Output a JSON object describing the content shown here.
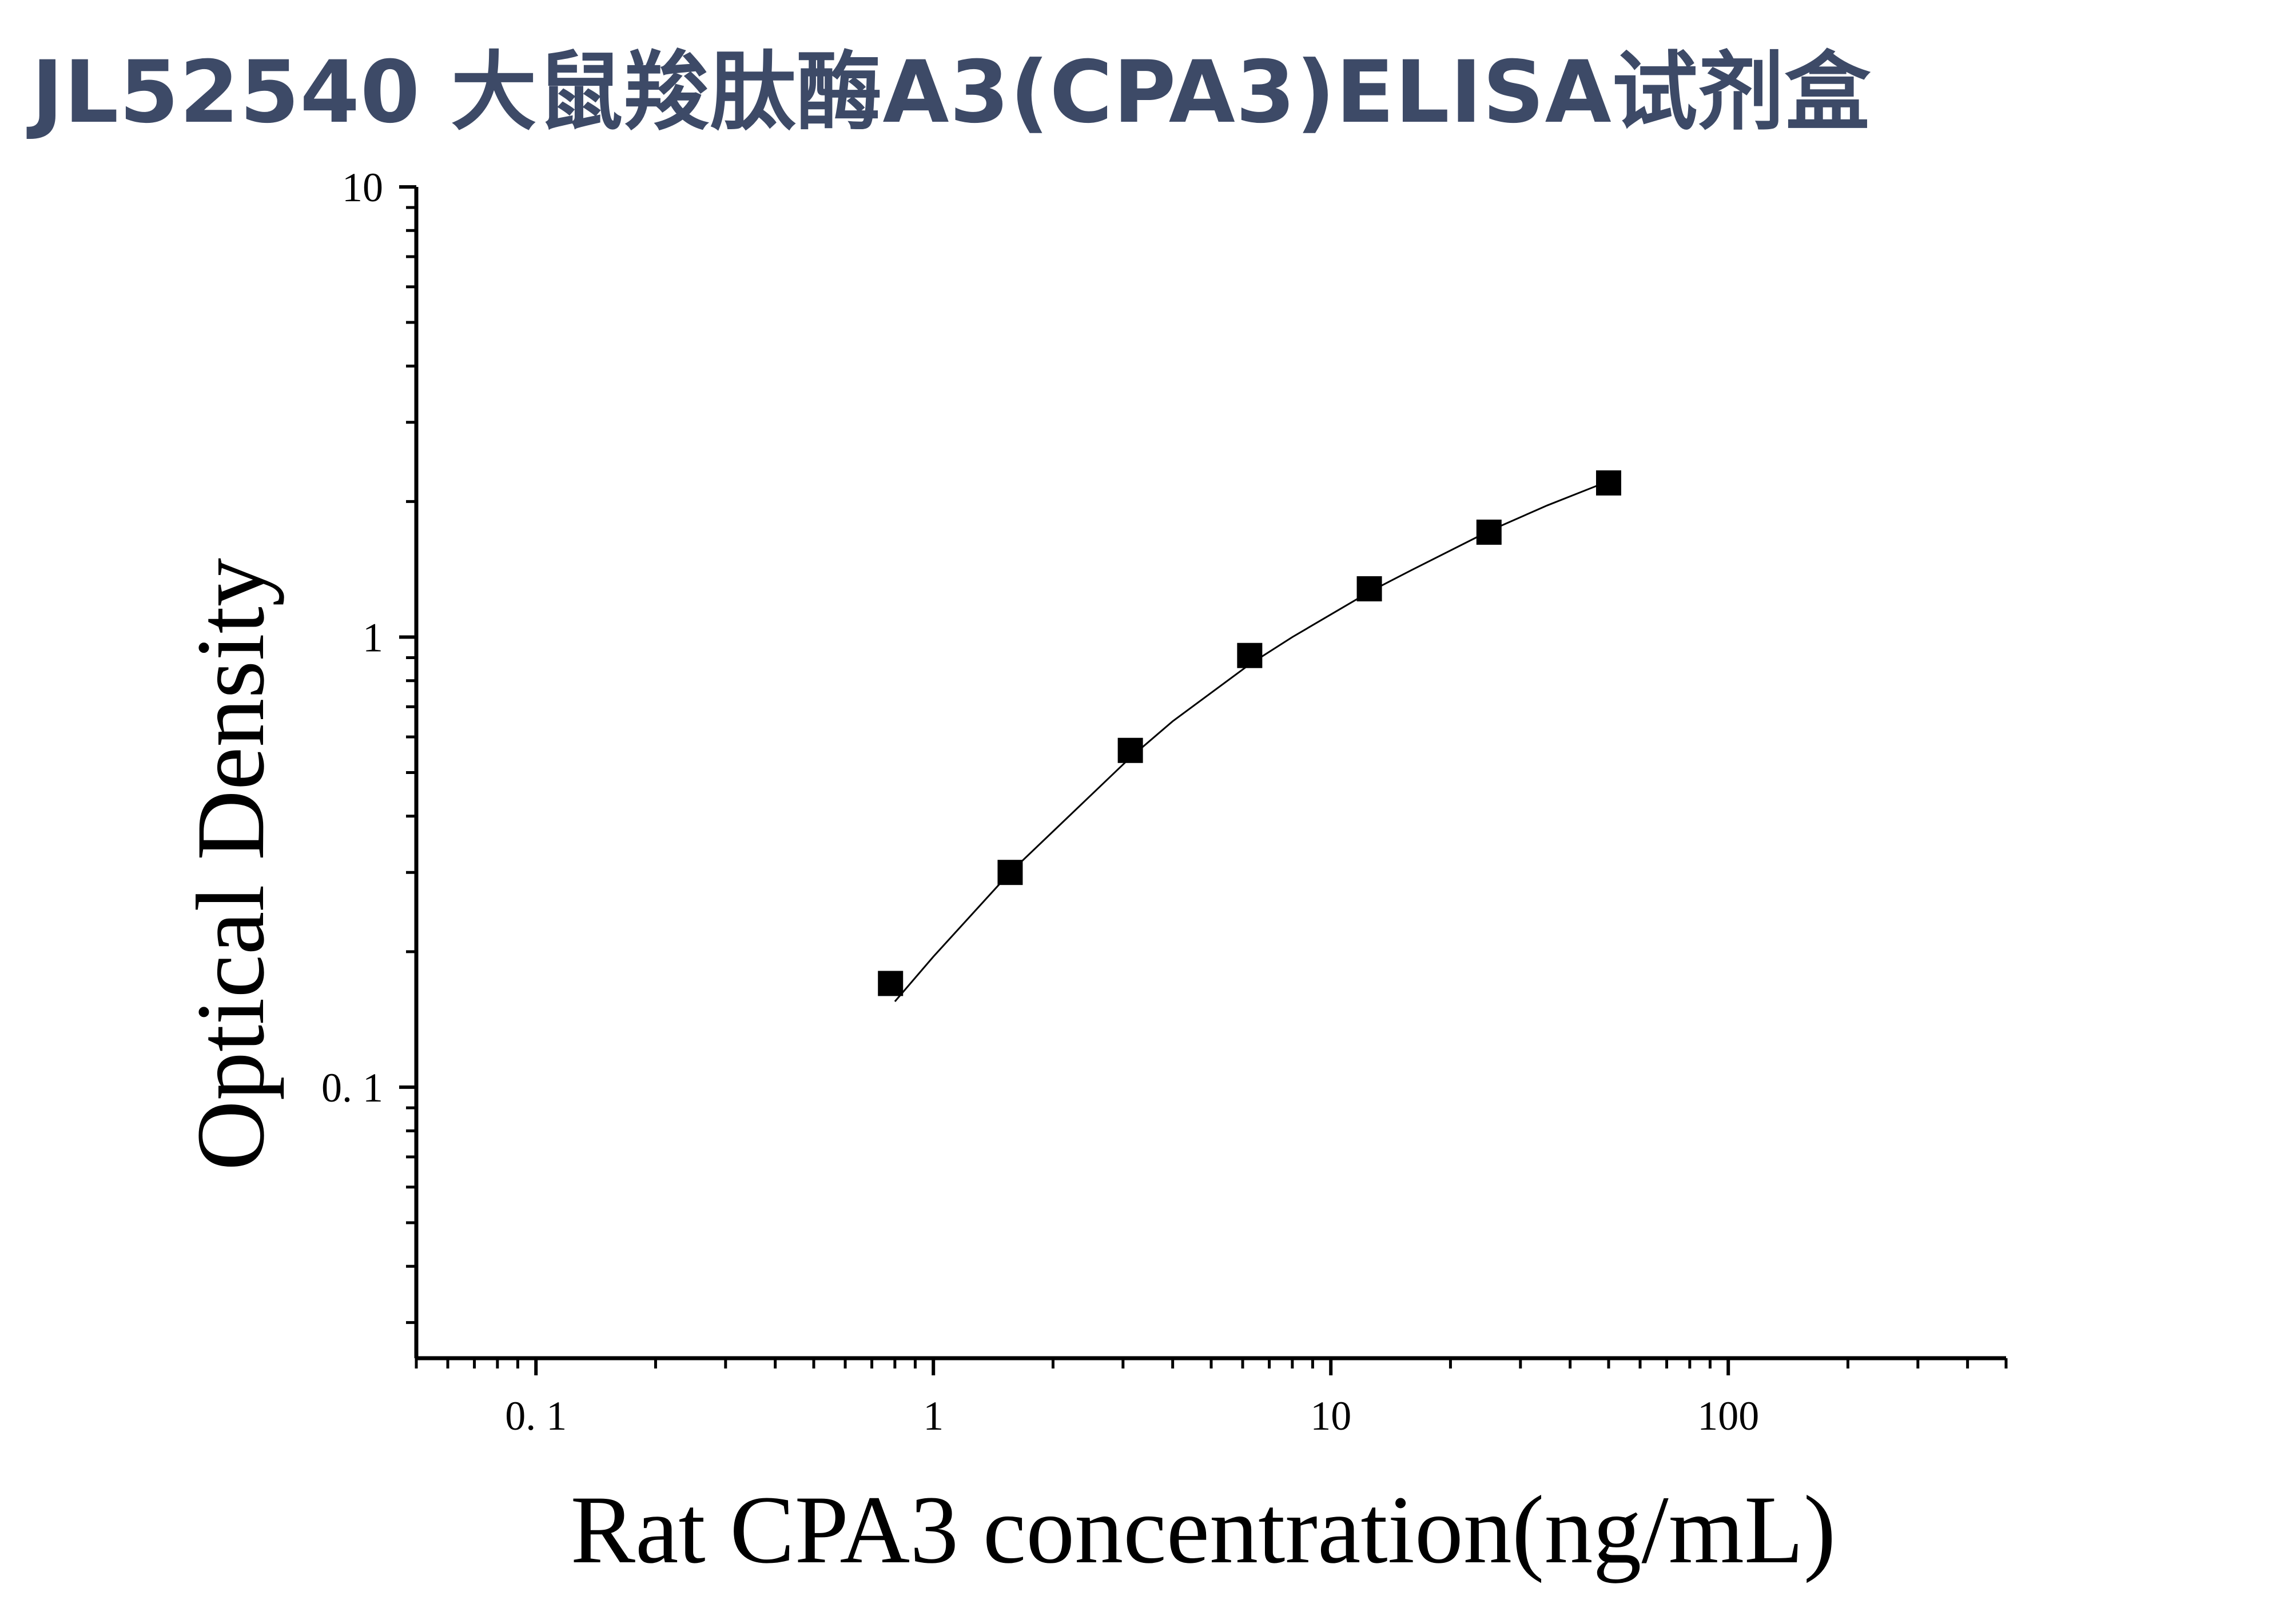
{
  "page": {
    "title": "JL52540 大鼠羧肽酶A3(CPA3)ELISA试剂盒"
  },
  "chart_data": {
    "type": "scatter",
    "title": "JL52540 大鼠羧肽酶A3(CPA3)ELISA试剂盒",
    "xlabel": "Rat CPA3 concentration(ng/mL)",
    "ylabel": "Optical Density",
    "x_scale": "log",
    "y_scale": "log",
    "xlim": [
      0.05,
      500
    ],
    "ylim": [
      0.025,
      10
    ],
    "x_ticks": [
      0.1,
      1,
      10,
      100
    ],
    "x_tick_labels": [
      "0. 1",
      "1",
      "10",
      "100"
    ],
    "y_ticks": [
      0.1,
      1,
      10
    ],
    "y_tick_labels": [
      "0. 1",
      "1",
      "10"
    ],
    "grid": false,
    "legend": "none",
    "series": [
      {
        "marker": "square",
        "color": "#000000",
        "x": [
          0.78,
          1.56,
          3.13,
          6.25,
          12.5,
          25,
          50
        ],
        "y": [
          0.17,
          0.3,
          0.56,
          0.91,
          1.28,
          1.71,
          2.2
        ]
      }
    ],
    "fit": {
      "type": "curve",
      "color": "#000000",
      "x": [
        0.8,
        1.0,
        1.56,
        2.0,
        3.13,
        4.0,
        6.25,
        8.0,
        12.5,
        16.0,
        25,
        35,
        50
      ],
      "y": [
        0.155,
        0.195,
        0.3,
        0.37,
        0.54,
        0.65,
        0.87,
        1.0,
        1.26,
        1.41,
        1.72,
        1.96,
        2.22
      ]
    }
  }
}
